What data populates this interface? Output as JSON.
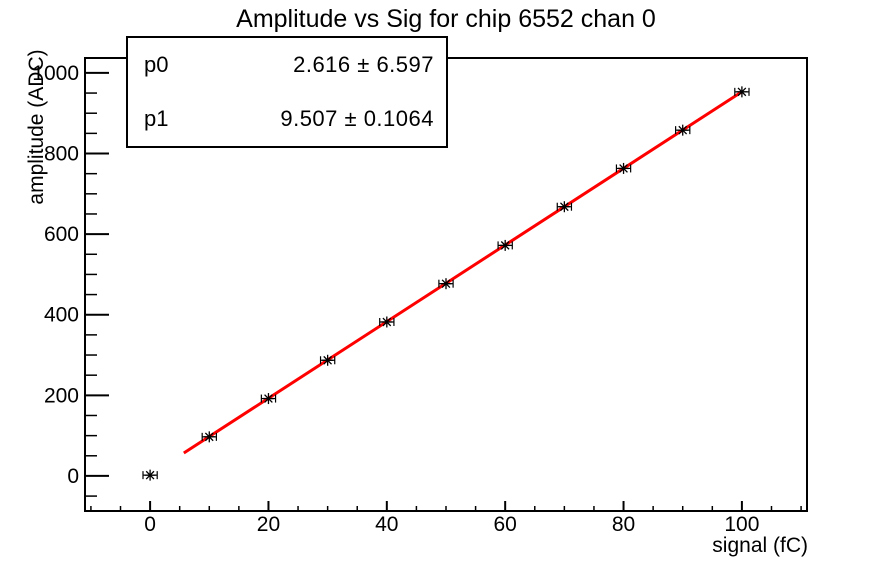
{
  "title": "Amplitude vs Sig for chip 6552 chan 0",
  "stats_box": {
    "rows": [
      {
        "name": "p0",
        "value": "2.616 ± 6.597"
      },
      {
        "name": "p1",
        "value": "9.507 ± 0.1064"
      }
    ]
  },
  "chart_data": {
    "type": "scatter",
    "title": "Amplitude vs Sig for chip 6552 chan 0",
    "xlabel": "signal (fC)",
    "ylabel": "amplitude (ADC)",
    "x": [
      0,
      10,
      20,
      30,
      40,
      50,
      60,
      70,
      80,
      90,
      100
    ],
    "y": [
      2,
      97,
      192,
      287,
      382,
      477,
      572,
      668,
      763,
      858,
      953
    ],
    "x_err": 1.2,
    "marker": "asterisk",
    "xlim": [
      -11,
      111
    ],
    "ylim": [
      -87,
      1037
    ],
    "x_major_ticks": [
      0,
      20,
      40,
      60,
      80,
      100
    ],
    "x_minor_step": 5,
    "y_major_ticks": [
      0,
      200,
      400,
      600,
      800,
      1000
    ],
    "y_minor_step": 50,
    "grid": false,
    "legend": "none",
    "fit": {
      "type": "linear",
      "p0": 2.616,
      "p1": 9.507,
      "p0_err": 6.597,
      "p1_err": 0.1064,
      "range": [
        5.7,
        100
      ]
    }
  },
  "colors": {
    "background": "#ffffff",
    "axis": "#000000",
    "marker": "#000000",
    "fit_line": "#ff0000",
    "text": "#000000"
  }
}
